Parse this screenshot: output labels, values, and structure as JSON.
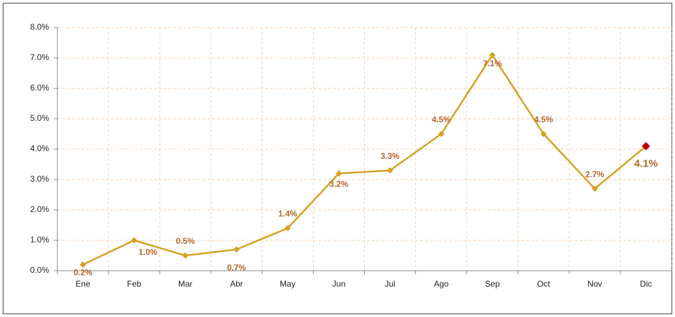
{
  "chart_data": {
    "type": "line",
    "categories": [
      "Ene",
      "Feb",
      "Mar",
      "Abr",
      "May",
      "Jun",
      "Jul",
      "Ago",
      "Sep",
      "Oct",
      "Nov",
      "Dic"
    ],
    "series": [
      {
        "color": "#d6a020",
        "values": [
          0.2,
          1.0,
          0.5,
          0.7,
          1.4,
          3.2,
          3.3,
          4.5,
          7.1,
          4.5,
          2.7,
          4.1
        ],
        "value_labels": [
          "0.2%",
          "1.0%",
          "0.5%",
          "0.7%",
          "1.4%",
          "3.2%",
          "3.3%",
          "4.5%",
          "7.1%",
          "4.5%",
          "2.7%",
          "4.1%"
        ]
      }
    ],
    "highlight_color": "#c00000",
    "label_color": "#b5652a",
    "ylim": [
      0,
      8
    ],
    "yticks": [
      {
        "value": 0,
        "label": "0.0%"
      },
      {
        "value": 1,
        "label": "1.0%"
      },
      {
        "value": 2,
        "label": "2.0%"
      },
      {
        "value": 3,
        "label": "3.0%"
      },
      {
        "value": 4,
        "label": "4.0%"
      },
      {
        "value": 5,
        "label": "5.0%"
      },
      {
        "value": 6,
        "label": "6.0%"
      },
      {
        "value": 7,
        "label": "7.0%"
      },
      {
        "value": 8,
        "label": "8.0%"
      }
    ],
    "grid": true
  }
}
